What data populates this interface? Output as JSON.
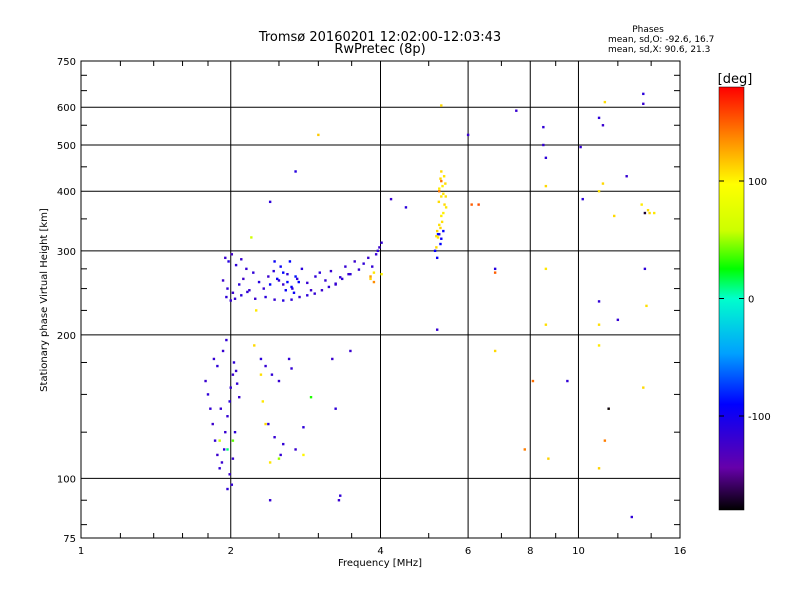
{
  "chart_data": {
    "type": "scatter",
    "title": "Tromsø 20160201 12:02:00-12:03:43",
    "subtitle": "RwPretec (8p)",
    "xlabel": "Frequency [MHz]",
    "ylabel": "Stationary phase Virtual Height [km]",
    "x_scale": "log",
    "y_scale": "log",
    "xlim": [
      1,
      16
    ],
    "ylim": [
      75,
      750
    ],
    "x_ticks": [
      1,
      2,
      4,
      6,
      8,
      10,
      16
    ],
    "y_ticks": [
      75,
      100,
      200,
      300,
      400,
      500,
      600,
      750
    ],
    "grid": true,
    "stats": {
      "heading": "Phases",
      "o_mode": "mean, sd,O: -92.6, 16.7",
      "x_mode": "mean, sd,X:  90.6, 21.3"
    },
    "colorbar": {
      "label": "[deg]",
      "range": [
        -180,
        180
      ],
      "ticks": [
        100,
        0,
        -100
      ]
    },
    "series": [
      {
        "points": [
          [
            1.95,
            290,
            -120
          ],
          [
            1.98,
            285,
            -110
          ],
          [
            2.01,
            295,
            -125
          ],
          [
            2.05,
            280,
            -115
          ],
          [
            2.1,
            288,
            -120
          ],
          [
            2.15,
            275,
            -118
          ],
          [
            1.93,
            260,
            -122
          ],
          [
            1.97,
            250,
            -116
          ],
          [
            2.02,
            245,
            -120
          ],
          [
            2.08,
            255,
            -112
          ],
          [
            2.12,
            262,
            -124
          ],
          [
            2.18,
            248,
            -119
          ],
          [
            2.22,
            270,
            -115
          ],
          [
            2.28,
            258,
            -110
          ],
          [
            2.33,
            250,
            -118
          ],
          [
            2.38,
            265,
            -121
          ],
          [
            2.44,
            272,
            -113
          ],
          [
            2.5,
            260,
            -117
          ],
          [
            2.55,
            255,
            -119
          ],
          [
            2.6,
            268,
            -114
          ],
          [
            2.66,
            250,
            -120
          ],
          [
            2.72,
            262,
            -116
          ],
          [
            2.78,
            275,
            -112
          ],
          [
            2.85,
            257,
            -118
          ],
          [
            2.9,
            248,
            -121
          ],
          [
            2.96,
            265,
            -115
          ],
          [
            3.02,
            270,
            -113
          ],
          [
            3.1,
            260,
            -117
          ],
          [
            3.18,
            272,
            -119
          ],
          [
            3.25,
            255,
            -120
          ],
          [
            3.32,
            264,
            -116
          ],
          [
            3.4,
            278,
            -118
          ],
          [
            3.48,
            268,
            -114
          ],
          [
            3.55,
            285,
            -120
          ],
          [
            3.62,
            274,
            -117
          ],
          [
            3.7,
            282,
            -115
          ],
          [
            3.78,
            290,
            -119
          ],
          [
            3.85,
            278,
            -116
          ],
          [
            3.92,
            295,
            -118
          ],
          [
            3.98,
            305,
            -121
          ],
          [
            4.02,
            312,
            -117
          ],
          [
            3.95,
            300,
            -114
          ],
          [
            2.35,
            240,
            -112
          ],
          [
            2.45,
            237,
            -118
          ],
          [
            2.55,
            236,
            -110
          ],
          [
            2.65,
            237,
            -115
          ],
          [
            2.75,
            240,
            -119
          ],
          [
            2.85,
            242,
            -113
          ],
          [
            2.95,
            244,
            -117
          ],
          [
            3.05,
            248,
            -120
          ],
          [
            3.15,
            252,
            -114
          ],
          [
            3.25,
            256,
            -118
          ],
          [
            3.35,
            262,
            -116
          ],
          [
            3.45,
            268,
            -119
          ],
          [
            1.96,
            240,
            -115
          ],
          [
            2.0,
            236,
            -120
          ],
          [
            2.04,
            238,
            -118
          ],
          [
            2.1,
            242,
            -112
          ],
          [
            2.16,
            246,
            -117
          ],
          [
            2.24,
            238,
            -121
          ],
          [
            2.48,
            262,
            -95
          ],
          [
            2.55,
            270,
            -90
          ],
          [
            2.6,
            258,
            -88
          ],
          [
            2.65,
            252,
            -92
          ],
          [
            2.7,
            265,
            -85
          ],
          [
            2.58,
            248,
            -93
          ],
          [
            2.52,
            278,
            -96
          ],
          [
            2.63,
            285,
            -90
          ],
          [
            2.68,
            245,
            -94
          ],
          [
            2.4,
            255,
            -90
          ],
          [
            2.74,
            258,
            -91
          ],
          [
            2.45,
            285,
            -94
          ],
          [
            1.78,
            160,
            -120
          ],
          [
            1.8,
            150,
            -115
          ],
          [
            1.82,
            140,
            -118
          ],
          [
            1.84,
            130,
            -122
          ],
          [
            1.86,
            120,
            -117
          ],
          [
            1.88,
            112,
            -121
          ],
          [
            1.9,
            105,
            -116
          ],
          [
            1.92,
            108,
            -120
          ],
          [
            1.94,
            115,
            -114
          ],
          [
            1.95,
            125,
            -119
          ],
          [
            1.97,
            135,
            -117
          ],
          [
            1.99,
            145,
            -113
          ],
          [
            2.0,
            155,
            -118
          ],
          [
            2.02,
            165,
            -121
          ],
          [
            2.03,
            175,
            -115
          ],
          [
            2.05,
            168,
            -119
          ],
          [
            2.06,
            158,
            -116
          ],
          [
            2.08,
            148,
            -120
          ],
          [
            1.85,
            178,
            -118
          ],
          [
            1.88,
            172,
            -114
          ],
          [
            1.93,
            185,
            -119
          ],
          [
            1.96,
            195,
            -116
          ],
          [
            1.99,
            102,
            -121
          ],
          [
            2.01,
            97,
            -117
          ],
          [
            1.97,
            95,
            -115
          ],
          [
            2.02,
            110,
            -119
          ],
          [
            2.04,
            125,
            -114
          ],
          [
            1.91,
            140,
            -118
          ],
          [
            2.3,
            178,
            -112
          ],
          [
            2.35,
            172,
            -118
          ],
          [
            2.42,
            165,
            -116
          ],
          [
            2.5,
            160,
            -119
          ],
          [
            2.62,
            178,
            -115
          ],
          [
            2.65,
            170,
            -117
          ],
          [
            2.38,
            130,
            -113
          ],
          [
            2.45,
            122,
            -118
          ],
          [
            2.55,
            118,
            -116
          ],
          [
            2.7,
            115,
            -120
          ],
          [
            2.8,
            128,
            -114
          ],
          [
            2.52,
            112,
            -117
          ],
          [
            3.2,
            178,
            -121
          ],
          [
            3.25,
            140,
            -115
          ],
          [
            3.48,
            185,
            -120
          ],
          [
            2.4,
            90,
            -118
          ],
          [
            3.3,
            90,
            -120
          ],
          [
            3.32,
            92,
            -116
          ],
          [
            2.4,
            380,
            -114
          ],
          [
            2.7,
            440,
            -110
          ],
          [
            4.2,
            385,
            -120
          ],
          [
            4.5,
            370,
            -112
          ],
          [
            5.2,
            205,
            -118
          ],
          [
            5.25,
            325,
            -115
          ],
          [
            6.0,
            525,
            -120
          ],
          [
            6.8,
            275,
            -110
          ],
          [
            7.5,
            590,
            -119
          ],
          [
            8.5,
            545,
            -116
          ],
          [
            8.5,
            500,
            -118
          ],
          [
            8.6,
            470,
            -114
          ],
          [
            9.5,
            160,
            -116
          ],
          [
            10.2,
            385,
            -112
          ],
          [
            10.1,
            495,
            -118
          ],
          [
            11.0,
            570,
            -114
          ],
          [
            11.0,
            235,
            -116
          ],
          [
            11.2,
            550,
            -120
          ],
          [
            12.0,
            215,
            -117
          ],
          [
            12.5,
            430,
            -118
          ],
          [
            13.5,
            640,
            -112
          ],
          [
            13.5,
            610,
            -119
          ],
          [
            13.6,
            275,
            -114
          ],
          [
            12.8,
            83,
            -115
          ],
          [
            5.2,
            290,
            -95
          ],
          [
            5.15,
            300,
            -92
          ],
          [
            5.28,
            310,
            -90
          ],
          [
            5.3,
            318,
            -94
          ],
          [
            5.22,
            325,
            -88
          ],
          [
            5.35,
            330,
            -91
          ],
          [
            3.82,
            262,
            110
          ],
          [
            3.88,
            270,
            105
          ],
          [
            4.02,
            268,
            100
          ],
          [
            5.18,
            305,
            110
          ],
          [
            5.22,
            320,
            105
          ],
          [
            5.28,
            335,
            112
          ],
          [
            5.32,
            345,
            108
          ],
          [
            5.35,
            360,
            102
          ],
          [
            5.38,
            375,
            110
          ],
          [
            5.3,
            390,
            106
          ],
          [
            5.25,
            405,
            104
          ],
          [
            5.4,
            415,
            109
          ],
          [
            5.28,
            425,
            111
          ],
          [
            5.35,
            395,
            107
          ],
          [
            5.42,
            370,
            105
          ],
          [
            5.3,
            355,
            103
          ],
          [
            5.25,
            340,
            108
          ],
          [
            5.2,
            330,
            112
          ],
          [
            5.24,
            380,
            109
          ],
          [
            5.33,
            410,
            104
          ],
          [
            5.37,
            430,
            106
          ],
          [
            5.3,
            440,
            110
          ],
          [
            5.18,
            322,
            108
          ],
          [
            5.41,
            390,
            107
          ],
          [
            5.3,
            605,
            110
          ],
          [
            3.0,
            525,
            115
          ],
          [
            2.2,
            320,
            60
          ],
          [
            2.25,
            225,
            105
          ],
          [
            2.23,
            190,
            110
          ],
          [
            2.3,
            165,
            108
          ],
          [
            2.32,
            145,
            105
          ],
          [
            2.35,
            130,
            110
          ],
          [
            2.4,
            108,
            106
          ],
          [
            2.8,
            112,
            100
          ],
          [
            2.9,
            148,
            30
          ],
          [
            2.5,
            110,
            50
          ],
          [
            2.02,
            120,
            40
          ],
          [
            1.97,
            115,
            10
          ],
          [
            1.9,
            120,
            60
          ],
          [
            6.8,
            185,
            110
          ],
          [
            8.6,
            275,
            105
          ],
          [
            8.6,
            210,
            108
          ],
          [
            8.6,
            410,
            110
          ],
          [
            8.7,
            110,
            112
          ],
          [
            11.0,
            190,
            105
          ],
          [
            11.0,
            210,
            108
          ],
          [
            11.2,
            415,
            110
          ],
          [
            11.0,
            400,
            106
          ],
          [
            11.3,
            615,
            108
          ],
          [
            11.8,
            355,
            110
          ],
          [
            11.5,
            140,
            60
          ],
          [
            11.0,
            105,
            112
          ],
          [
            13.8,
            365,
            108
          ],
          [
            13.9,
            360,
            110
          ],
          [
            14.2,
            360,
            105
          ],
          [
            13.7,
            230,
            108
          ],
          [
            13.5,
            155,
            110
          ],
          [
            13.4,
            375,
            104
          ],
          [
            3.82,
            265,
            130
          ],
          [
            3.88,
            258,
            135
          ],
          [
            6.8,
            270,
            150
          ],
          [
            5.25,
            400,
            140
          ],
          [
            5.3,
            420,
            145
          ],
          [
            7.8,
            115,
            140
          ],
          [
            8.1,
            160,
            145
          ],
          [
            11.3,
            120,
            140
          ],
          [
            6.1,
            375,
            150
          ],
          [
            6.3,
            375,
            155
          ],
          [
            13.6,
            360,
            -170
          ],
          [
            11.5,
            140,
            -175
          ]
        ]
      }
    ]
  }
}
